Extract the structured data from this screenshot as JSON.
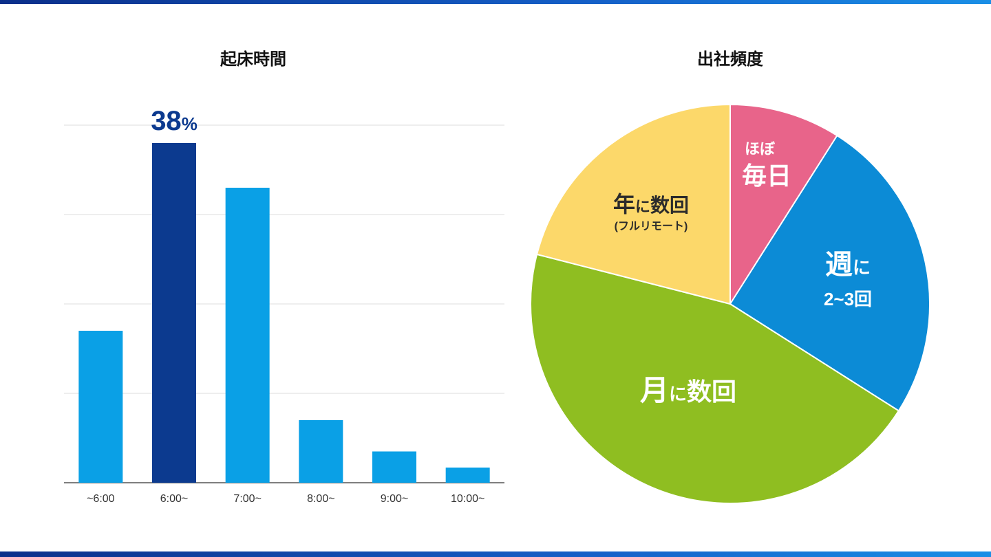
{
  "chart_data": [
    {
      "type": "bar",
      "title": "起床時間",
      "categories": [
        "~6:00",
        "6:00~",
        "7:00~",
        "8:00~",
        "9:00~",
        "10:00~"
      ],
      "values": [
        17,
        38,
        33,
        7,
        3.5,
        1.7
      ],
      "ylim": [
        0,
        40
      ],
      "grid": true,
      "highlight": {
        "index": 1,
        "label_value": "38",
        "label_unit": "%"
      },
      "colors": {
        "bar": "#0aa0e6",
        "highlight": "#0c3a8f",
        "grid": "#dddddd",
        "axis": "#555555"
      }
    },
    {
      "type": "pie",
      "title": "出社頻度",
      "slices": [
        {
          "label_small": "ほぼ",
          "label_main": "毎日",
          "value": 9,
          "color": "#e8648a",
          "text_color": "#ffffff"
        },
        {
          "label_main": "週",
          "label_small": "に",
          "label_sub": "2~3回",
          "value": 25,
          "color": "#0c8bd6",
          "text_color": "#ffffff"
        },
        {
          "label_main": "月",
          "label_small": "に",
          "label_main2": "数回",
          "value": 45,
          "color": "#8fbe21",
          "text_color": "#ffffff"
        },
        {
          "label_main": "年",
          "label_small": "に",
          "label_main2": "数回",
          "label_sub": "(フルリモート)",
          "value": 21,
          "color": "#fcd86a",
          "text_color": "#2b2b2b"
        }
      ]
    }
  ]
}
